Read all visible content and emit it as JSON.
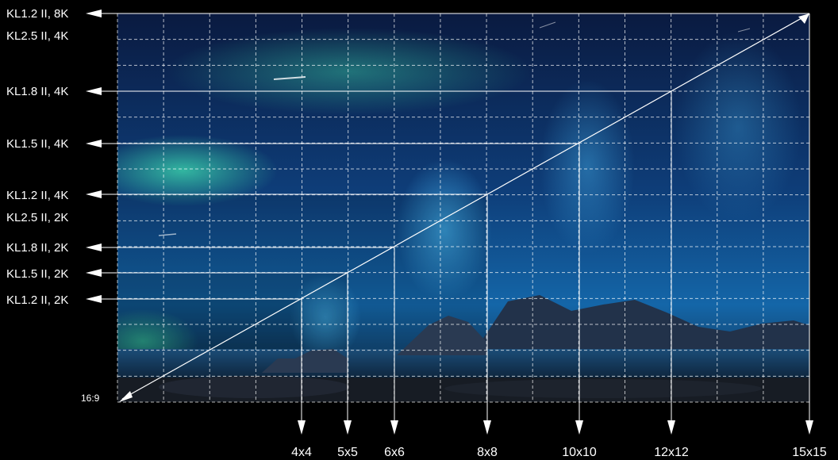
{
  "diagram": {
    "corner_label": "16:9",
    "row_labels": [
      {
        "id": "kl12-8k",
        "text": "KL1.2 II, 8K",
        "arrow": true
      },
      {
        "id": "kl25-4k",
        "text": "KL2.5 II, 4K",
        "arrow": false
      },
      {
        "id": "kl18-4k",
        "text": "KL1.8 II, 4K",
        "arrow": true
      },
      {
        "id": "kl15-4k",
        "text": "KL1.5 II, 4K",
        "arrow": true
      },
      {
        "id": "kl12-4k",
        "text": "KL1.2 II, 4K",
        "arrow": true
      },
      {
        "id": "kl25-2k",
        "text": "KL2.5 II, 2K",
        "arrow": false
      },
      {
        "id": "kl18-2k",
        "text": "KL1.8 II, 2K",
        "arrow": true
      },
      {
        "id": "kl15-2k",
        "text": "KL1.5 II, 2K",
        "arrow": true
      },
      {
        "id": "kl12-2k",
        "text": "KL1.2 II, 2K",
        "arrow": true
      }
    ],
    "column_labels": [
      {
        "id": "4x4",
        "text": "4x4"
      },
      {
        "id": "5x5",
        "text": "5x5"
      },
      {
        "id": "6x6",
        "text": "6x6"
      },
      {
        "id": "8x8",
        "text": "8x8"
      },
      {
        "id": "10x10",
        "text": "10x10"
      },
      {
        "id": "12x12",
        "text": "12x12"
      },
      {
        "id": "15x15",
        "text": "15x15"
      }
    ],
    "grid": {
      "columns": 15,
      "rows": 15
    },
    "colors": {
      "background": "#000000",
      "line": "#ffffff",
      "sky_dark": "#0b1f4a",
      "sky_mid": "#0f4d86",
      "aurora": "#2fd0a0",
      "aurora_blue": "#3aa8e8",
      "ground": "#1a2230"
    }
  }
}
